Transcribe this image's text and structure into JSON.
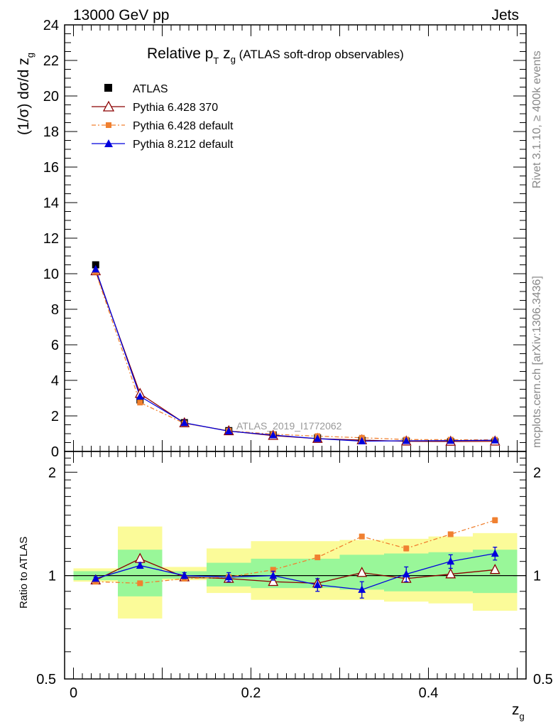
{
  "header": {
    "left": "13000 GeV pp",
    "right": "Jets"
  },
  "side_labels": {
    "rivet": "Rivet 3.1.10, ≥ 400k events",
    "mcplots": "mcplots.cern.ch [arXiv:1306.3436]"
  },
  "title": {
    "main": "Relative p",
    "sub_T": "T",
    "mid": " z",
    "sub_g": "g",
    "tail": " (ATLAS soft-drop observables)"
  },
  "watermark": "ATLAS_2019_I1772062",
  "ylabel_top": {
    "text": "(1/σ) dσ/d z",
    "sub": "g"
  },
  "ylabel_bottom": "Ratio to ATLAS",
  "xlabel": {
    "text": "z",
    "sub": "g"
  },
  "colors": {
    "data": "#000000",
    "py6_370": "#8b0000",
    "py6_default": "#f08030",
    "py8": "#0000dd",
    "band_green": "#99f799",
    "band_yellow": "#fbfb99"
  },
  "chart_data": {
    "type": "scatter",
    "x": [
      0.025,
      0.075,
      0.125,
      0.175,
      0.225,
      0.275,
      0.325,
      0.375,
      0.425,
      0.475
    ],
    "bin_edges": [
      0.0,
      0.05,
      0.1,
      0.15,
      0.2,
      0.25,
      0.3,
      0.35,
      0.4,
      0.45,
      0.5
    ],
    "xlim": [
      -0.01,
      0.51
    ],
    "ylim_top": [
      0,
      24
    ],
    "yticks_top": [
      0,
      2,
      4,
      6,
      8,
      10,
      12,
      14,
      16,
      18,
      20,
      22,
      24
    ],
    "ylim_ratio": [
      0.5,
      2.3
    ],
    "yticks_ratio_labels": [
      "0.5",
      "1",
      "2"
    ],
    "yticks_ratio_values": [
      0.5,
      1,
      2
    ],
    "xticks": [
      0,
      0.2,
      0.4
    ],
    "xtick_labels": [
      "0",
      "0.2",
      "0.4"
    ],
    "legend": [
      "ATLAS",
      "Pythia 6.428 370",
      "Pythia 6.428 default",
      "Pythia 8.212 default"
    ],
    "series": [
      {
        "name": "ATLAS",
        "key": "data",
        "marker": "square",
        "values": [
          10.5,
          2.9,
          1.62,
          1.17,
          0.93,
          0.76,
          0.63,
          0.58,
          0.55,
          0.54
        ]
      },
      {
        "name": "Pythia 6.428 370",
        "key": "py6_370",
        "marker": "triangle-open",
        "values": [
          10.15,
          3.25,
          1.6,
          1.15,
          0.89,
          0.72,
          0.64,
          0.57,
          0.56,
          0.57
        ],
        "ratio": [
          0.97,
          1.12,
          0.99,
          0.98,
          0.96,
          0.95,
          1.02,
          0.98,
          1.01,
          1.04
        ]
      },
      {
        "name": "Pythia 6.428 default",
        "key": "py6_default",
        "marker": "square-small",
        "values": [
          10.1,
          2.75,
          1.58,
          1.16,
          0.97,
          0.86,
          0.77,
          0.67,
          0.66,
          0.66
        ],
        "ratio": [
          0.96,
          0.95,
          0.98,
          0.99,
          1.04,
          1.13,
          1.3,
          1.2,
          1.32,
          1.45
        ],
        "ratio_err": [
          0.005,
          0.005,
          0.005,
          0.005,
          0.01,
          0.015,
          0.02,
          0.02,
          0.02,
          0.025
        ]
      },
      {
        "name": "Pythia 8.212 default",
        "key": "py8",
        "marker": "triangle",
        "values": [
          10.25,
          3.1,
          1.61,
          1.14,
          0.92,
          0.72,
          0.58,
          0.6,
          0.61,
          0.63
        ],
        "ratio": [
          0.98,
          1.07,
          1.0,
          0.99,
          1.0,
          0.94,
          0.91,
          1.01,
          1.1,
          1.16
        ],
        "ratio_err": [
          0.01,
          0.02,
          0.02,
          0.03,
          0.03,
          0.04,
          0.05,
          0.05,
          0.05,
          0.05
        ]
      }
    ],
    "bands": {
      "green_lo": [
        0.97,
        0.87,
        0.98,
        0.93,
        0.92,
        0.92,
        0.91,
        0.9,
        0.9,
        0.89
      ],
      "green_hi": [
        1.03,
        1.19,
        1.03,
        1.09,
        1.12,
        1.12,
        1.15,
        1.16,
        1.17,
        1.19
      ],
      "yellow_lo": [
        0.96,
        0.75,
        0.97,
        0.89,
        0.85,
        0.85,
        0.85,
        0.84,
        0.83,
        0.79
      ],
      "yellow_hi": [
        1.05,
        1.39,
        1.06,
        1.2,
        1.26,
        1.26,
        1.27,
        1.28,
        1.3,
        1.33
      ]
    }
  }
}
